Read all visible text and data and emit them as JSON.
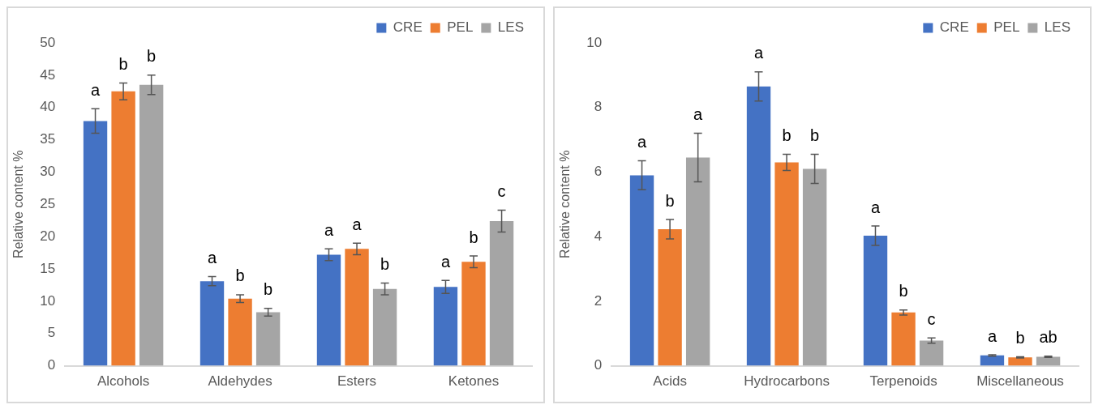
{
  "chart_data": [
    {
      "type": "bar",
      "ylabel": "Relative content %",
      "categories": [
        "Alcohols",
        "Aldehydes",
        "Esters",
        "Ketones"
      ],
      "series": [
        {
          "name": "CRE",
          "color": "#4472c4",
          "values": [
            37.9,
            13.1,
            17.2,
            12.2
          ],
          "errors": [
            1.9,
            0.7,
            0.9,
            1.0
          ]
        },
        {
          "name": "PEL",
          "color": "#ed7d31",
          "values": [
            42.5,
            10.4,
            18.1,
            16.1
          ],
          "errors": [
            1.3,
            0.6,
            0.9,
            0.9
          ]
        },
        {
          "name": "LES",
          "color": "#a5a5a5",
          "values": [
            43.5,
            8.3,
            11.9,
            22.4
          ],
          "errors": [
            1.5,
            0.6,
            0.9,
            1.7
          ]
        }
      ],
      "ylim": [
        0,
        50
      ],
      "yticks": [
        0,
        5,
        10,
        15,
        20,
        25,
        30,
        35,
        40,
        45,
        50
      ],
      "grid": false,
      "legend": "top right",
      "annotations": [
        "a",
        "b",
        "b",
        "a",
        "b",
        "b",
        "a",
        "a",
        "b",
        "a",
        "b",
        "c"
      ]
    },
    {
      "type": "bar",
      "ylabel": "Relative content %",
      "categories": [
        "Acids",
        "Hydrocarbons",
        "Terpenoids",
        "Miscellaneous"
      ],
      "series": [
        {
          "name": "CRE",
          "color": "#4472c4",
          "values": [
            5.9,
            8.65,
            4.03,
            0.32
          ],
          "errors": [
            0.45,
            0.45,
            0.3,
            0.02
          ]
        },
        {
          "name": "PEL",
          "color": "#ed7d31",
          "values": [
            4.23,
            6.3,
            1.65,
            0.26
          ],
          "errors": [
            0.3,
            0.25,
            0.08,
            0.02
          ]
        },
        {
          "name": "LES",
          "color": "#a5a5a5",
          "values": [
            6.45,
            6.1,
            0.78,
            0.28
          ],
          "errors": [
            0.75,
            0.45,
            0.08,
            0.02
          ]
        }
      ],
      "ylim": [
        0,
        10
      ],
      "yticks": [
        0,
        2,
        4,
        6,
        8,
        10
      ],
      "grid": false,
      "legend": "top right",
      "annotations": [
        "a",
        "b",
        "a",
        "a",
        "b",
        "b",
        "a",
        "b",
        "c",
        "a",
        "b",
        "ab"
      ]
    }
  ]
}
